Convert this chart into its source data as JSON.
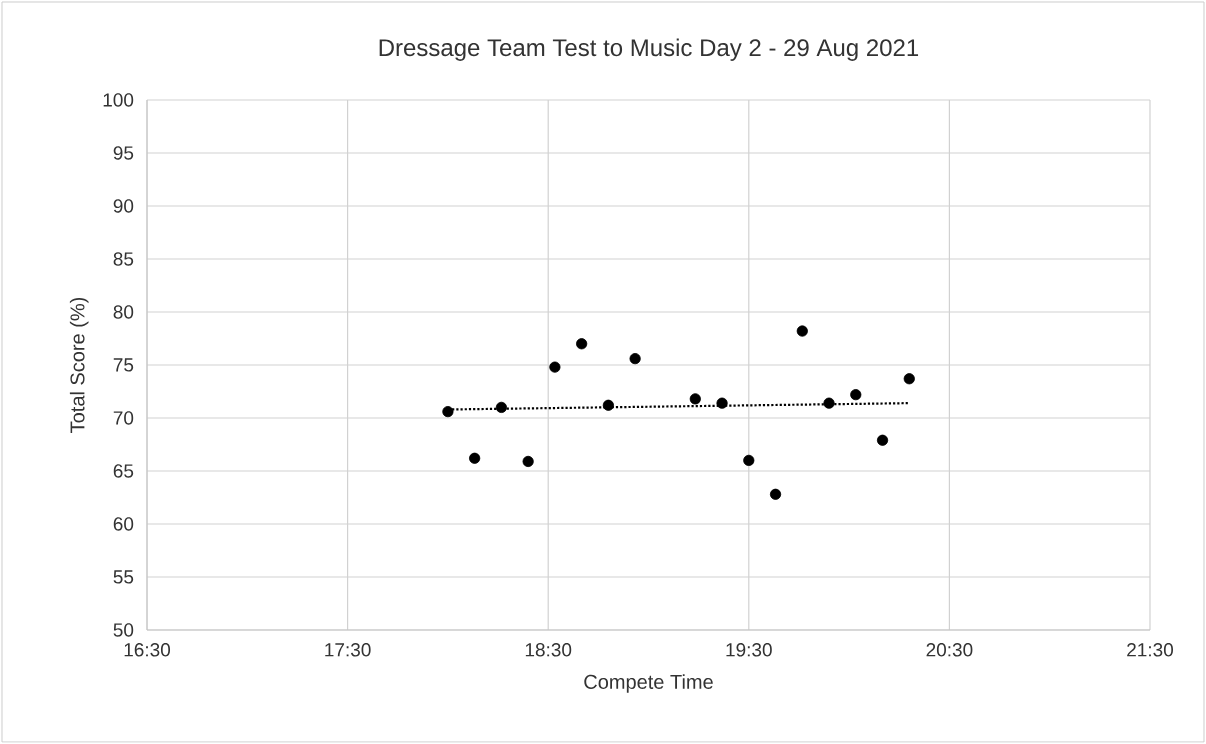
{
  "chart_data": {
    "type": "scatter",
    "title": "Dressage Team Test to Music Day 2 - 29 Aug 2021",
    "xlabel": "Compete Time",
    "ylabel": "Total Score (%)",
    "series": [
      {
        "color": "#000000",
        "marker": "circle",
        "x": [
          18,
          18.1333,
          18.2667,
          18.4,
          18.5333,
          18.6667,
          18.8,
          18.9333,
          19.2333,
          19.3667,
          19.5,
          19.6333,
          19.7667,
          19.9,
          20.0333,
          20.1667,
          20.3
        ],
        "values": [
          70.6,
          66.2,
          71.0,
          65.9,
          74.8,
          77.0,
          71.2,
          75.6,
          71.8,
          71.4,
          66.0,
          62.8,
          78.2,
          71.4,
          72.2,
          67.9,
          73.7
        ]
      },
      {
        "type": "line",
        "color": "#000000",
        "marker": "none",
        "line_style": "dotted",
        "x": [
          18,
          20.3
        ],
        "values": [
          70.8,
          71.4
        ]
      }
    ],
    "xlim": [
      16.5,
      21.5
    ],
    "xticks": [
      {
        "value": 16.5,
        "label": "16:30"
      },
      {
        "value": 17.5,
        "label": "17:30"
      },
      {
        "value": 18.5,
        "label": "18:30"
      },
      {
        "value": 19.5,
        "label": "19:30"
      },
      {
        "value": 20.5,
        "label": "20:30"
      },
      {
        "value": 21.5,
        "label": "21:30"
      }
    ],
    "ylim": [
      50,
      100
    ],
    "yticks": [
      50,
      55,
      60,
      65,
      70,
      75,
      80,
      85,
      90,
      95,
      100
    ],
    "grid": true,
    "legend": false
  }
}
